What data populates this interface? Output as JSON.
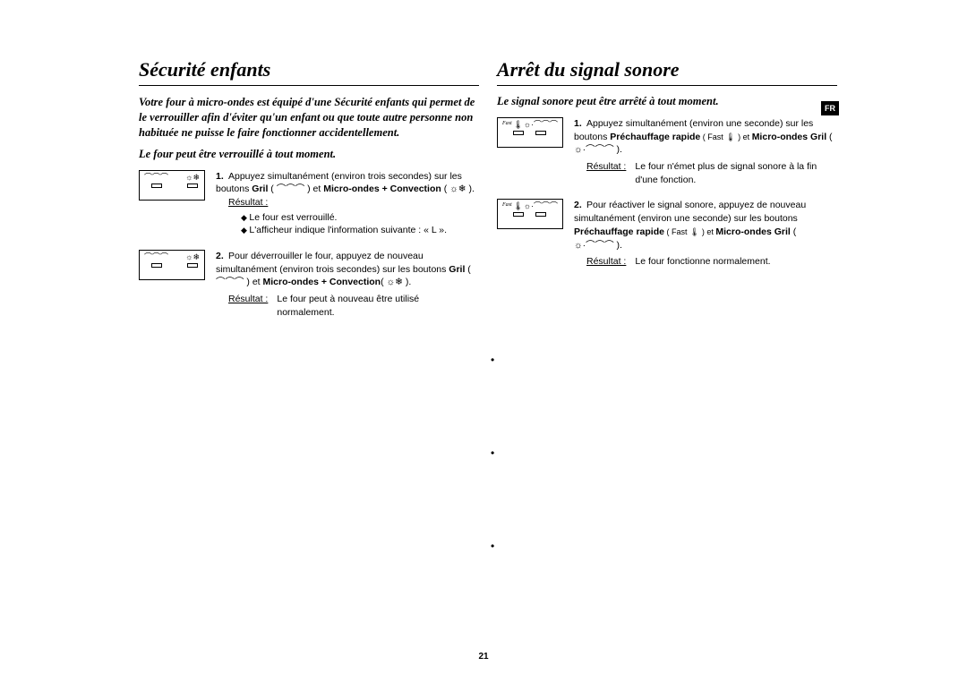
{
  "lang_badge": "FR",
  "page_number": "21",
  "left": {
    "title": "Sécurité enfants",
    "intro": "Votre four à micro-ondes est équipé d'une Sécurité enfants qui permet de le verrouiller afin d'éviter qu'un enfant ou que toute autre personne non habituée ne puisse le faire fonctionner accidentellement.",
    "subhead": "Le four peut être verrouillé à tout moment.",
    "step1": {
      "num": "1.",
      "text_a": "Appuyez simultanément (environ trois secondes) sur les boutons ",
      "bold_a": "Gril",
      "text_b": " ( ⌒⌒⌒ ) et ",
      "bold_b": "Micro-ondes + Convection",
      "text_c": " ( ☼❄ ).",
      "result_label": "Résultat :",
      "bullet1": "Le four est verrouillé.",
      "bullet2": "L'afficheur indique l'information suivante : « L ».",
      "panel_icon1": "⌒⌒⌒",
      "panel_icon2": "☼❄"
    },
    "step2": {
      "num": "2.",
      "text_a": "Pour déverrouiller le four, appuyez de nouveau simultanément (environ trois secondes) sur les boutons ",
      "bold_a": "Gril",
      "text_b": " (  ⌒⌒⌒  ) et ",
      "bold_b": "Micro-ondes + Convection",
      "text_c": "(  ☼❄  ).",
      "result_label": "Résultat :",
      "result_text": "Le four peut à nouveau être utilisé normalement.",
      "panel_icon1": "⌒⌒⌒",
      "panel_icon2": "☼❄"
    }
  },
  "right": {
    "title": "Arrêt du signal sonore",
    "subhead": "Le signal sonore peut être arrêté à tout moment.",
    "step1": {
      "num": "1.",
      "text_a": "Appuyez simultanément (environ une seconde) sur les boutons ",
      "bold_a": "Préchauffage rapide",
      "text_b": " ( Fast 🌡 ) et ",
      "bold_b": "Micro-ondes Gril",
      "text_c": " ( ☼·⌒⌒⌒ ).",
      "result_label": "Résultat :",
      "result_text": "Le four n'émet plus de signal sonore à la fin d'une fonction.",
      "panel_fast": "Fast",
      "panel_icon1": "🌡",
      "panel_icon2": "☼·⌒⌒⌒"
    },
    "step2": {
      "num": "2.",
      "text_a": "Pour réactiver le signal sonore, appuyez de nouveau simultanément (environ une seconde) sur les boutons ",
      "bold_a": "Préchauffage rapide",
      "text_b": " ( Fast 🌡 ) et ",
      "bold_b": "Micro-ondes Gril",
      "text_c": " (  ☼·⌒⌒⌒  ).",
      "result_label": "Résultat :",
      "result_text": "Le four fonctionne normalement.",
      "panel_fast": "Fast",
      "panel_icon1": "🌡",
      "panel_icon2": "☼·⌒⌒⌒"
    }
  }
}
